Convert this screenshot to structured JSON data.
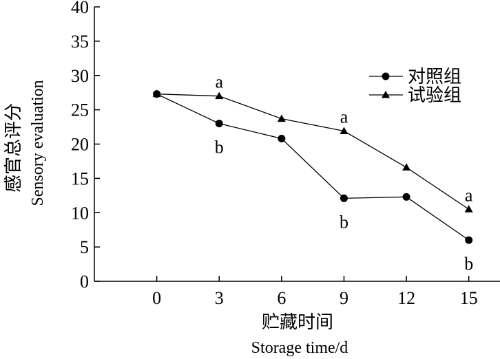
{
  "chart_data": {
    "type": "line",
    "x": [
      0,
      3,
      6,
      9,
      12,
      15
    ],
    "xlim": [
      -3,
      16.5
    ],
    "ylim": [
      0,
      40
    ],
    "x_ticks": [
      "0",
      "3",
      "6",
      "9",
      "12",
      "15"
    ],
    "y_ticks": [
      "0",
      "5",
      "10",
      "15",
      "20",
      "25",
      "30",
      "35",
      "40"
    ],
    "xlabel": "贮藏时间",
    "xlabel_en": "Storage time/d",
    "ylabel": "感官总评分",
    "ylabel_en": "Sensory evaluation",
    "legend_position": "top-right",
    "grid": false,
    "series": [
      {
        "name": "对照组",
        "marker": "circle",
        "values": [
          27.3,
          23.0,
          20.8,
          12.1,
          12.3,
          6.0
        ]
      },
      {
        "name": "试验组",
        "marker": "triangle",
        "values": [
          27.3,
          27.0,
          23.7,
          21.9,
          16.6,
          10.5
        ]
      }
    ],
    "annotations": [
      {
        "text": "a",
        "x": 3,
        "y": 27.0,
        "series": "试验组",
        "position": "above"
      },
      {
        "text": "b",
        "x": 3,
        "y": 23.0,
        "series": "对照组",
        "position": "below"
      },
      {
        "text": "a",
        "x": 9,
        "y": 21.9,
        "series": "试验组",
        "position": "above"
      },
      {
        "text": "b",
        "x": 9,
        "y": 12.1,
        "series": "对照组",
        "position": "below"
      },
      {
        "text": "a",
        "x": 15,
        "y": 10.5,
        "series": "试验组",
        "position": "above"
      },
      {
        "text": "b",
        "x": 15,
        "y": 6.0,
        "series": "对照组",
        "position": "below"
      }
    ]
  }
}
